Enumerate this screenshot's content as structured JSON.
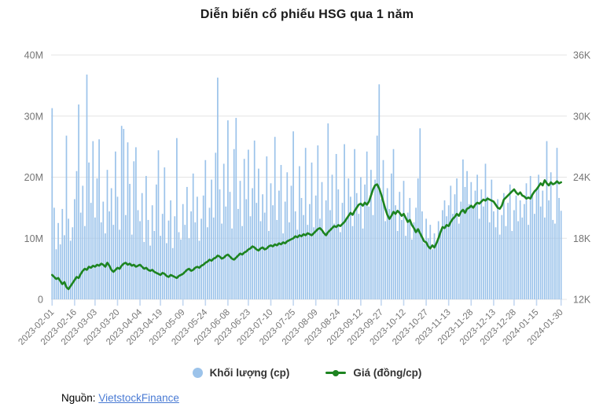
{
  "header": {
    "title": "Diễn biến cổ phiếu HSG qua 1 năm"
  },
  "source": {
    "prefix": "Nguồn:",
    "link_text": "VietstockFinance",
    "link_color": "#4a7bd4"
  },
  "colors": {
    "bar": "#9cc3ea",
    "line": "#1d8420",
    "grid": "#e4e4e4",
    "axis_text": "#757575",
    "tick_mark": "#c3d7f0",
    "legend_text": "#333333"
  },
  "chart_data": {
    "type": "combo-bar-line-dual-axis",
    "title": "Diễn biến cổ phiếu HSG qua 1 năm",
    "grid": "horizontal-only",
    "legend_position": "bottom",
    "left_axis": {
      "title": "",
      "unit": "cp",
      "min": 0,
      "max": 40000000,
      "tick_labels": [
        "0",
        "10M",
        "20M",
        "30M",
        "40M"
      ],
      "tick_values_million": [
        0,
        10,
        20,
        30,
        40
      ]
    },
    "right_axis": {
      "title": "",
      "unit": "đồng/cp",
      "min": 12000,
      "max": 36000,
      "tick_labels": [
        "12K",
        "18K",
        "24K",
        "30K",
        "36K"
      ],
      "tick_values_thousand": [
        12,
        18,
        24,
        30,
        36
      ]
    },
    "x_tick_labels": [
      "2023-02-01",
      "2023-02-16",
      "2023-03-03",
      "2023-03-20",
      "2023-04-04",
      "2023-04-19",
      "2023-05-09",
      "2023-05-24",
      "2023-06-08",
      "2023-06-23",
      "2023-07-10",
      "2023-07-25",
      "2023-08-09",
      "2023-08-24",
      "2023-09-12",
      "2023-09-27",
      "2023-10-12",
      "2023-10-27",
      "2023-11-13",
      "2023-11-28",
      "2023-12-13",
      "2023-12-28",
      "2024-01-15",
      "2024-01-30"
    ],
    "x_tick_indices": [
      0,
      11,
      21,
      32,
      43,
      53,
      64,
      75,
      86,
      96,
      107,
      118,
      129,
      140,
      151,
      161,
      172,
      183,
      194,
      205,
      216,
      226,
      237,
      249
    ],
    "series": [
      {
        "name": "Khối lượng (cp)",
        "type": "bar",
        "axis": "left",
        "color": "#9cc3ea",
        "values_million": [
          31.3,
          15.0,
          8.2,
          12.5,
          9.0,
          14.8,
          10.5,
          26.8,
          13.2,
          9.6,
          11.8,
          16.4,
          21.0,
          31.9,
          14.2,
          18.6,
          12.0,
          36.8,
          22.4,
          15.8,
          25.9,
          13.4,
          19.8,
          26.2,
          12.6,
          16.0,
          10.8,
          21.2,
          14.4,
          18.2,
          12.2,
          24.2,
          16.8,
          11.4,
          28.4,
          27.9,
          13.8,
          25.7,
          18.9,
          10.6,
          22.6,
          24.9,
          14.6,
          12.8,
          17.4,
          9.4,
          20.2,
          13.0,
          8.8,
          15.4,
          11.2,
          18.8,
          24.4,
          10.4,
          14.0,
          21.6,
          9.2,
          12.9,
          16.2,
          8.4,
          13.6,
          26.4,
          11.0,
          9.8,
          15.6,
          12.2,
          18.4,
          10.0,
          14.4,
          20.6,
          12.6,
          16.8,
          9.6,
          13.2,
          17.0,
          22.8,
          11.8,
          15.0,
          19.6,
          13.4,
          24.0,
          36.3,
          18.0,
          12.4,
          22.2,
          15.2,
          29.3,
          17.6,
          11.6,
          24.6,
          29.7,
          14.8,
          19.4,
          12.0,
          23.0,
          16.4,
          24.5,
          13.6,
          18.2,
          26.0,
          15.8,
          21.4,
          12.8,
          17.2,
          14.2,
          23.4,
          11.2,
          19.0,
          15.4,
          26.6,
          13.0,
          17.8,
          22.0,
          10.8,
          16.0,
          20.8,
          12.6,
          18.6,
          27.5,
          14.4,
          11.4,
          21.8,
          16.6,
          13.8,
          24.8,
          12.2,
          15.6,
          22.4,
          11.8,
          17.0,
          25.2,
          13.2,
          19.2,
          10.6,
          16.2,
          28.8,
          14.6,
          20.4,
          12.4,
          23.8,
          18.0,
          11.0,
          15.8,
          25.4,
          13.4,
          19.8,
          16.8,
          12.0,
          24.6,
          17.4,
          14.0,
          20.0,
          11.6,
          18.8,
          24.2,
          15.2,
          21.2,
          13.8,
          19.6,
          26.8,
          35.2,
          16.4,
          22.8,
          12.8,
          18.2,
          14.8,
          20.6,
          24.6,
          15.4,
          11.2,
          17.6,
          13.0,
          19.4,
          10.4,
          14.2,
          16.6,
          9.8,
          12.6,
          15.0,
          19.8,
          28.0,
          14.4,
          9.2,
          13.2,
          10.0,
          12.2,
          8.2,
          10.8,
          9.4,
          12.8,
          11.0,
          14.6,
          16.2,
          13.6,
          15.4,
          18.6,
          14.0,
          17.2,
          19.8,
          12.4,
          16.0,
          22.9,
          18.4,
          21.0,
          15.6,
          19.2,
          14.8,
          17.8,
          20.4,
          13.2,
          18.0,
          15.2,
          22.2,
          16.8,
          12.6,
          19.6,
          14.4,
          11.8,
          16.4,
          10.6,
          13.8,
          17.4,
          12.0,
          15.8,
          18.8,
          11.2,
          14.6,
          17.0,
          12.8,
          16.2,
          13.4,
          15.6,
          19.0,
          12.2,
          20.2,
          17.0,
          14.0,
          18.2,
          20.4,
          15.2,
          17.8,
          13.4,
          25.9,
          16.2,
          20.8,
          13.0,
          12.4,
          24.8,
          16.6,
          14.5
        ]
      },
      {
        "name": "Giá (đồng/cp)",
        "type": "line",
        "axis": "right",
        "color": "#1d8420",
        "values_thousand": [
          14.4,
          14.2,
          14.0,
          14.1,
          13.8,
          13.5,
          13.7,
          13.2,
          13.0,
          13.3,
          13.6,
          13.9,
          14.2,
          14.1,
          14.5,
          14.8,
          15.0,
          14.9,
          15.2,
          15.1,
          15.3,
          15.2,
          15.4,
          15.3,
          15.5,
          15.4,
          15.2,
          15.6,
          15.3,
          14.9,
          14.7,
          14.9,
          15.1,
          15.0,
          15.3,
          15.5,
          15.6,
          15.4,
          15.5,
          15.3,
          15.4,
          15.2,
          15.3,
          15.4,
          15.2,
          15.0,
          15.1,
          14.9,
          14.8,
          14.9,
          14.7,
          14.6,
          14.5,
          14.4,
          14.6,
          14.5,
          14.3,
          14.2,
          14.4,
          14.3,
          14.2,
          14.1,
          14.3,
          14.4,
          14.5,
          14.7,
          14.9,
          15.0,
          14.8,
          14.9,
          15.1,
          15.2,
          15.1,
          15.3,
          15.4,
          15.6,
          15.7,
          15.9,
          15.8,
          16.0,
          16.1,
          16.3,
          16.2,
          16.0,
          16.1,
          16.3,
          16.4,
          16.2,
          16.0,
          15.9,
          16.1,
          16.3,
          16.5,
          16.4,
          16.6,
          16.7,
          16.9,
          17.0,
          17.2,
          17.1,
          16.9,
          16.8,
          17.0,
          17.1,
          16.9,
          17.0,
          17.2,
          17.3,
          17.2,
          17.4,
          17.3,
          17.5,
          17.4,
          17.6,
          17.5,
          17.7,
          17.8,
          17.9,
          18.0,
          18.2,
          18.1,
          18.3,
          18.2,
          18.4,
          18.3,
          18.5,
          18.4,
          18.3,
          18.5,
          18.7,
          18.9,
          19.0,
          18.8,
          18.5,
          18.3,
          18.6,
          18.8,
          19.0,
          19.2,
          19.1,
          19.3,
          19.2,
          19.4,
          19.6,
          19.9,
          20.2,
          20.5,
          20.3,
          20.7,
          21.0,
          21.3,
          21.4,
          21.2,
          21.5,
          21.3,
          21.6,
          22.2,
          22.8,
          23.2,
          23.3,
          22.9,
          22.3,
          21.6,
          20.9,
          20.3,
          19.9,
          20.2,
          20.6,
          20.4,
          20.7,
          20.5,
          20.2,
          20.4,
          20.0,
          19.6,
          19.8,
          19.3,
          19.0,
          18.6,
          18.9,
          18.5,
          18.1,
          17.7,
          17.6,
          17.2,
          17.0,
          17.3,
          17.1,
          17.5,
          18.0,
          18.6,
          19.1,
          19.0,
          19.3,
          19.2,
          19.6,
          19.9,
          20.1,
          20.4,
          20.2,
          20.6,
          20.8,
          20.5,
          20.9,
          21.0,
          21.2,
          21.0,
          21.3,
          21.5,
          21.4,
          21.6,
          21.8,
          21.7,
          21.9,
          21.8,
          21.7,
          21.6,
          21.3,
          21.0,
          20.9,
          21.2,
          21.8,
          22.0,
          22.2,
          22.4,
          22.6,
          22.8,
          22.5,
          22.3,
          22.5,
          22.2,
          22.1,
          21.9,
          22.0,
          21.9,
          22.3,
          22.6,
          22.8,
          23.1,
          23.4,
          23.2,
          23.7,
          23.4,
          23.2,
          23.5,
          23.3,
          23.4,
          23.6,
          23.4,
          23.5
        ]
      }
    ]
  }
}
